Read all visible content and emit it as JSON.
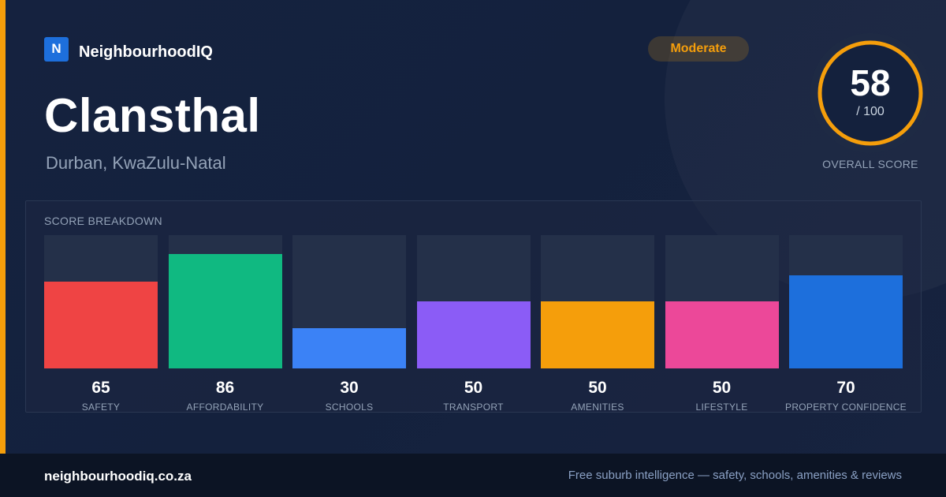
{
  "brand": {
    "logo_letter": "N",
    "name": "NeighbourhoodIQ"
  },
  "suburb": {
    "name": "Clansthal",
    "location": "Durban, KwaZulu-Natal"
  },
  "badge": {
    "label": "Moderate",
    "color": "#f59e0b"
  },
  "overall": {
    "score": "58",
    "max_label": "/ 100",
    "caption": "OVERALL SCORE",
    "fraction": 0.58,
    "ring_color": "#f59e0b"
  },
  "breakdown": {
    "title": "SCORE BREAKDOWN",
    "max": 100,
    "items": [
      {
        "label": "SAFETY",
        "value": 65,
        "value_text": "65",
        "color": "#ef4444"
      },
      {
        "label": "AFFORDABILITY",
        "value": 86,
        "value_text": "86",
        "color": "#10b981"
      },
      {
        "label": "SCHOOLS",
        "value": 30,
        "value_text": "30",
        "color": "#3b82f6"
      },
      {
        "label": "TRANSPORT",
        "value": 50,
        "value_text": "50",
        "color": "#8b5cf6"
      },
      {
        "label": "AMENITIES",
        "value": 50,
        "value_text": "50",
        "color": "#f59e0b"
      },
      {
        "label": "LIFESTYLE",
        "value": 50,
        "value_text": "50",
        "color": "#ec4899"
      },
      {
        "label": "PROPERTY CONFIDENCE",
        "value": 70,
        "value_text": "70",
        "color": "#1d6fdc"
      }
    ]
  },
  "footer": {
    "domain": "neighbourhoodiq.co.za",
    "tagline": "Free suburb intelligence — safety, schools, amenities & reviews"
  }
}
